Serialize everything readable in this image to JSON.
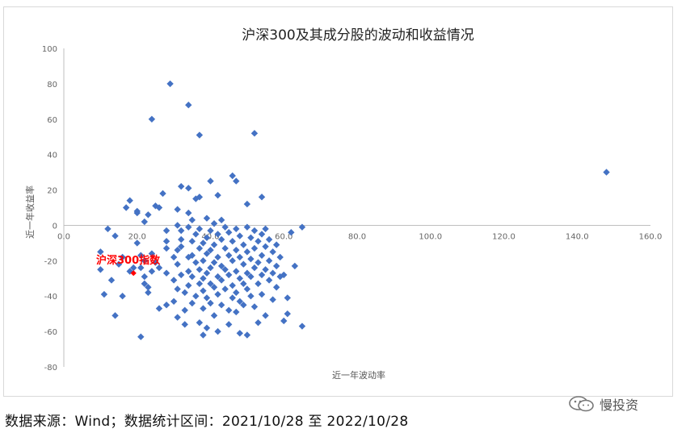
{
  "chart_data": {
    "type": "scatter",
    "title": "沪深300及其成分股的波动和收益情况",
    "xlabel": "近一年波动率",
    "ylabel": "近一年收益率",
    "xlim": [
      0,
      160
    ],
    "ylim": [
      -80,
      100
    ],
    "x_ticks": [
      "0.0",
      "20.0",
      "40.0",
      "60.0",
      "80.0",
      "100.0",
      "120.0",
      "140.0",
      "160.0"
    ],
    "y_ticks": [
      "-80",
      "-60",
      "-40",
      "-20",
      "0",
      "20",
      "40",
      "60",
      "80",
      "100"
    ],
    "grid": false,
    "colors": {
      "stocks": "#4472c4",
      "index": "#ff0000"
    },
    "series": [
      {
        "points": [
          [
            10,
            -15
          ],
          [
            10,
            -25
          ],
          [
            11,
            -39
          ],
          [
            12,
            -2
          ],
          [
            13,
            -31
          ],
          [
            14,
            -51
          ],
          [
            14,
            -6
          ],
          [
            15,
            -22
          ],
          [
            16,
            -18
          ],
          [
            16,
            -40
          ],
          [
            17,
            10
          ],
          [
            18,
            14
          ],
          [
            18,
            -26
          ],
          [
            19,
            -24
          ],
          [
            20,
            8
          ],
          [
            20,
            7
          ],
          [
            20,
            -10
          ],
          [
            21,
            -17
          ],
          [
            21,
            -24
          ],
          [
            22,
            -20
          ],
          [
            23,
            -35
          ],
          [
            24,
            -16
          ],
          [
            24,
            -26
          ],
          [
            21,
            -63
          ],
          [
            22,
            -29
          ],
          [
            22,
            -33
          ],
          [
            23,
            -38
          ],
          [
            22,
            2
          ],
          [
            23,
            6
          ],
          [
            24,
            60
          ],
          [
            25,
            11
          ],
          [
            26,
            10
          ],
          [
            25,
            -21
          ],
          [
            26,
            -47
          ],
          [
            26,
            -24
          ],
          [
            27,
            18
          ],
          [
            28,
            -3
          ],
          [
            28,
            -9
          ],
          [
            28,
            -13
          ],
          [
            28,
            -27
          ],
          [
            28,
            -45
          ],
          [
            29,
            80
          ],
          [
            30,
            -18
          ],
          [
            30,
            -31
          ],
          [
            30,
            -43
          ],
          [
            31,
            9
          ],
          [
            31,
            0
          ],
          [
            31,
            -14
          ],
          [
            31,
            -22
          ],
          [
            31,
            -36
          ],
          [
            31,
            -52
          ],
          [
            32,
            22
          ],
          [
            32,
            -3
          ],
          [
            32,
            -8
          ],
          [
            32,
            -12
          ],
          [
            32,
            -28
          ],
          [
            33,
            -38
          ],
          [
            33,
            -48
          ],
          [
            33,
            -56
          ],
          [
            34,
            68
          ],
          [
            34,
            21
          ],
          [
            34,
            7
          ],
          [
            34,
            -1
          ],
          [
            34,
            -18
          ],
          [
            34,
            -26
          ],
          [
            34,
            -34
          ],
          [
            35,
            3
          ],
          [
            35,
            -9
          ],
          [
            35,
            -17
          ],
          [
            35,
            -29
          ],
          [
            35,
            -44
          ],
          [
            36,
            15
          ],
          [
            36,
            -5
          ],
          [
            36,
            -21
          ],
          [
            36,
            -40
          ],
          [
            37,
            51
          ],
          [
            37,
            16
          ],
          [
            37,
            -2
          ],
          [
            37,
            -13
          ],
          [
            37,
            -25
          ],
          [
            37,
            -33
          ],
          [
            37,
            -55
          ],
          [
            38,
            -10
          ],
          [
            38,
            -20
          ],
          [
            38,
            -30
          ],
          [
            38,
            -37
          ],
          [
            38,
            -47
          ],
          [
            38,
            -62
          ],
          [
            39,
            4
          ],
          [
            39,
            -7
          ],
          [
            39,
            -16
          ],
          [
            39,
            -27
          ],
          [
            39,
            -41
          ],
          [
            39,
            -58
          ],
          [
            40,
            25
          ],
          [
            40,
            -3
          ],
          [
            40,
            -14
          ],
          [
            40,
            -24
          ],
          [
            40,
            -33
          ],
          [
            40,
            -44
          ],
          [
            41,
            1
          ],
          [
            41,
            -11
          ],
          [
            41,
            -21
          ],
          [
            41,
            -35
          ],
          [
            41,
            -51
          ],
          [
            42,
            17
          ],
          [
            42,
            -5
          ],
          [
            42,
            -18
          ],
          [
            42,
            -29
          ],
          [
            42,
            -39
          ],
          [
            42,
            -60
          ],
          [
            43,
            3
          ],
          [
            43,
            -8
          ],
          [
            43,
            -23
          ],
          [
            43,
            -31
          ],
          [
            43,
            -45
          ],
          [
            44,
            -1
          ],
          [
            44,
            -13
          ],
          [
            44,
            -25
          ],
          [
            44,
            -36
          ],
          [
            45,
            -4
          ],
          [
            45,
            -17
          ],
          [
            45,
            -28
          ],
          [
            45,
            -48
          ],
          [
            45,
            -56
          ],
          [
            46,
            28
          ],
          [
            46,
            -9
          ],
          [
            46,
            -20
          ],
          [
            46,
            -34
          ],
          [
            46,
            -41
          ],
          [
            47,
            25
          ],
          [
            47,
            -2
          ],
          [
            47,
            -14
          ],
          [
            47,
            -26
          ],
          [
            47,
            -38
          ],
          [
            47,
            -49
          ],
          [
            48,
            -6
          ],
          [
            48,
            -18
          ],
          [
            48,
            -30
          ],
          [
            48,
            -43
          ],
          [
            48,
            -61
          ],
          [
            49,
            -11
          ],
          [
            49,
            -22
          ],
          [
            49,
            -33
          ],
          [
            49,
            -45
          ],
          [
            50,
            12
          ],
          [
            50,
            -1
          ],
          [
            50,
            -15
          ],
          [
            50,
            -27
          ],
          [
            50,
            -36
          ],
          [
            50,
            -62
          ],
          [
            51,
            -7
          ],
          [
            51,
            -19
          ],
          [
            51,
            -29
          ],
          [
            51,
            -40
          ],
          [
            52,
            52
          ],
          [
            52,
            -3
          ],
          [
            52,
            -13
          ],
          [
            52,
            -24
          ],
          [
            52,
            -46
          ],
          [
            53,
            -9
          ],
          [
            53,
            -21
          ],
          [
            53,
            -33
          ],
          [
            53,
            -55
          ],
          [
            54,
            16
          ],
          [
            54,
            -5
          ],
          [
            54,
            -17
          ],
          [
            54,
            -28
          ],
          [
            54,
            -39
          ],
          [
            55,
            -2
          ],
          [
            55,
            -12
          ],
          [
            55,
            -25
          ],
          [
            55,
            -51
          ],
          [
            56,
            -8
          ],
          [
            56,
            -20
          ],
          [
            56,
            -31
          ],
          [
            57,
            -15
          ],
          [
            57,
            -27
          ],
          [
            57,
            -42
          ],
          [
            58,
            -11
          ],
          [
            58,
            -23
          ],
          [
            58,
            -35
          ],
          [
            59,
            -18
          ],
          [
            59,
            -29
          ],
          [
            60,
            -54
          ],
          [
            60,
            -28
          ],
          [
            61,
            -41
          ],
          [
            61,
            -50
          ],
          [
            62,
            -4
          ],
          [
            63,
            -23
          ],
          [
            65,
            -1
          ],
          [
            65,
            -57
          ],
          [
            148,
            30
          ]
        ]
      },
      {
        "name": "沪深300指数",
        "points": [
          [
            19,
            -27
          ]
        ]
      }
    ]
  },
  "footer": {
    "source_note": "数据来源：Wind；数据统计区间：2021/10/28 至 2022/10/28"
  },
  "watermark": {
    "icon": "wechat-icon",
    "text": "慢投资"
  }
}
